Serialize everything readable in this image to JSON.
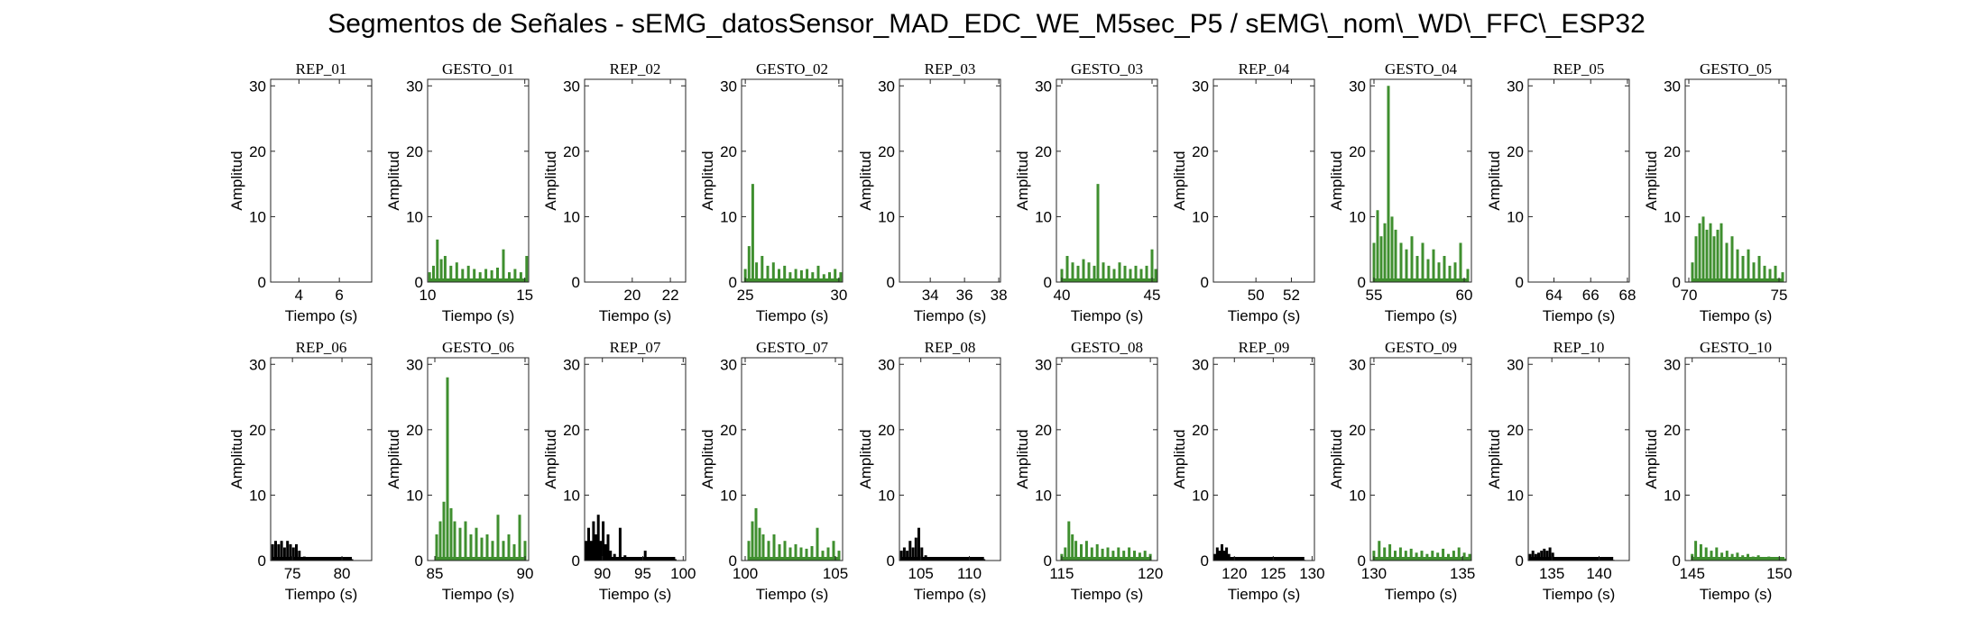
{
  "figure": {
    "title": "Segmentos de Señales - sEMG_datosSensor_MAD_EDC_WE_M5sec_P5 / sEMG\\_nom\\_WD\\_FFC\\_ESP32"
  },
  "colors": {
    "rep": "#000000",
    "gesto": "#3f8f2f",
    "axis": "#262626"
  },
  "chart_data": [
    {
      "type": "area",
      "title": "REP_01",
      "xlabel": "Tiempo (s)",
      "ylabel": "Amplitud",
      "xlim": [
        2.6,
        7.6
      ],
      "ylim": [
        0,
        31
      ],
      "xticks": [
        "4",
        "6"
      ],
      "xtick_values": [
        4,
        6
      ],
      "yticks": [
        "0",
        "10",
        "20",
        "30"
      ],
      "color": "#000000",
      "x": [],
      "y": []
    },
    {
      "type": "area",
      "title": "GESTO_01",
      "xlabel": "Tiempo (s)",
      "ylabel": "Amplitud",
      "xlim": [
        10,
        15.2
      ],
      "ylim": [
        0,
        31
      ],
      "xticks": [
        "10",
        "15"
      ],
      "xtick_values": [
        10,
        15
      ],
      "yticks": [
        "0",
        "10",
        "20",
        "30"
      ],
      "color": "#3f8f2f",
      "x": [
        10.1,
        10.3,
        10.5,
        10.7,
        10.9,
        11.2,
        11.5,
        11.8,
        12.1,
        12.4,
        12.7,
        13.0,
        13.3,
        13.6,
        13.9,
        14.2,
        14.5,
        14.8,
        15.1
      ],
      "y": [
        1.5,
        2.5,
        6.5,
        3.5,
        4,
        2.5,
        3,
        2,
        2.5,
        2,
        1.5,
        2,
        1.8,
        2.2,
        5,
        1.5,
        2,
        1.5,
        4
      ]
    },
    {
      "type": "area",
      "title": "REP_02",
      "xlabel": "Tiempo (s)",
      "ylabel": "Amplitud",
      "xlim": [
        17.5,
        22.8
      ],
      "ylim": [
        0,
        31
      ],
      "xticks": [
        "20",
        "22"
      ],
      "xtick_values": [
        20,
        22
      ],
      "yticks": [
        "0",
        "10",
        "20",
        "30"
      ],
      "color": "#000000",
      "x": [],
      "y": []
    },
    {
      "type": "area",
      "title": "GESTO_02",
      "xlabel": "Tiempo (s)",
      "ylabel": "Amplitud",
      "xlim": [
        24.8,
        30.2
      ],
      "ylim": [
        0,
        31
      ],
      "xticks": [
        "25",
        "30"
      ],
      "xtick_values": [
        25,
        30
      ],
      "yticks": [
        "0",
        "10",
        "20",
        "30"
      ],
      "color": "#3f8f2f",
      "x": [
        25.0,
        25.2,
        25.4,
        25.6,
        25.9,
        26.2,
        26.5,
        26.8,
        27.1,
        27.4,
        27.7,
        28.0,
        28.3,
        28.6,
        28.9,
        29.2,
        29.5,
        29.8,
        30.1
      ],
      "y": [
        2,
        5.5,
        15,
        3,
        4,
        2.5,
        3,
        2,
        2.5,
        1.5,
        2,
        1.8,
        2,
        1.5,
        2.5,
        1.2,
        1.5,
        2,
        1.5
      ]
    },
    {
      "type": "area",
      "title": "REP_03",
      "xlabel": "Tiempo (s)",
      "ylabel": "Amplitud",
      "xlim": [
        32.2,
        38.1
      ],
      "ylim": [
        0,
        31
      ],
      "xticks": [
        "34",
        "36",
        "38"
      ],
      "xtick_values": [
        34,
        36,
        38
      ],
      "yticks": [
        "0",
        "10",
        "20",
        "30"
      ],
      "color": "#000000",
      "x": [],
      "y": []
    },
    {
      "type": "area",
      "title": "GESTO_03",
      "xlabel": "Tiempo (s)",
      "ylabel": "Amplitud",
      "xlim": [
        39.7,
        45.3
      ],
      "ylim": [
        0,
        31
      ],
      "xticks": [
        "40",
        "45"
      ],
      "xtick_values": [
        40,
        45
      ],
      "yticks": [
        "0",
        "10",
        "20",
        "30"
      ],
      "color": "#3f8f2f",
      "x": [
        40.0,
        40.3,
        40.6,
        40.9,
        41.2,
        41.5,
        41.8,
        42.0,
        42.3,
        42.6,
        42.9,
        43.2,
        43.5,
        43.8,
        44.1,
        44.4,
        44.7,
        45.0,
        45.2
      ],
      "y": [
        2,
        4,
        3,
        2.5,
        3.5,
        3,
        2.5,
        15,
        3,
        2.5,
        2,
        3,
        2.5,
        2,
        2.5,
        2,
        2.5,
        5,
        2
      ]
    },
    {
      "type": "area",
      "title": "REP_04",
      "xlabel": "Tiempo (s)",
      "ylabel": "Amplitud",
      "xlim": [
        47.6,
        53.3
      ],
      "ylim": [
        0,
        31
      ],
      "xticks": [
        "50",
        "52"
      ],
      "xtick_values": [
        50,
        52
      ],
      "yticks": [
        "0",
        "10",
        "20",
        "30"
      ],
      "color": "#000000",
      "x": [],
      "y": []
    },
    {
      "type": "area",
      "title": "GESTO_04",
      "xlabel": "Tiempo (s)",
      "ylabel": "Amplitud",
      "xlim": [
        54.8,
        60.4
      ],
      "ylim": [
        0,
        31
      ],
      "xticks": [
        "55",
        "60"
      ],
      "xtick_values": [
        55,
        60
      ],
      "yticks": [
        "0",
        "10",
        "20",
        "30"
      ],
      "color": "#3f8f2f",
      "x": [
        55.0,
        55.2,
        55.4,
        55.6,
        55.8,
        56.0,
        56.2,
        56.5,
        56.8,
        57.1,
        57.4,
        57.7,
        58.0,
        58.3,
        58.6,
        58.9,
        59.2,
        59.5,
        59.8,
        60.2
      ],
      "y": [
        6,
        11,
        7,
        9,
        30,
        10,
        8,
        6,
        5,
        7,
        4,
        6,
        3.5,
        5,
        3,
        4,
        2.5,
        3,
        6,
        2
      ]
    },
    {
      "type": "area",
      "title": "REP_05",
      "xlabel": "Tiempo (s)",
      "ylabel": "Amplitud",
      "xlim": [
        62.6,
        68.1
      ],
      "ylim": [
        0,
        31
      ],
      "xticks": [
        "64",
        "66",
        "68"
      ],
      "xtick_values": [
        64,
        66,
        68
      ],
      "yticks": [
        "0",
        "10",
        "20",
        "30"
      ],
      "color": "#000000",
      "x": [],
      "y": []
    },
    {
      "type": "area",
      "title": "GESTO_05",
      "xlabel": "Tiempo (s)",
      "ylabel": "Amplitud",
      "xlim": [
        69.8,
        75.4
      ],
      "ylim": [
        0,
        31
      ],
      "xticks": [
        "70",
        "75"
      ],
      "xtick_values": [
        70,
        75
      ],
      "yticks": [
        "0",
        "10",
        "20",
        "30"
      ],
      "color": "#3f8f2f",
      "x": [
        70.2,
        70.4,
        70.6,
        70.8,
        71.0,
        71.2,
        71.4,
        71.6,
        71.8,
        72.1,
        72.4,
        72.7,
        73.0,
        73.3,
        73.6,
        73.9,
        74.2,
        74.5,
        74.8,
        75.2
      ],
      "y": [
        3,
        7,
        9,
        10,
        8,
        9,
        7,
        8,
        9,
        6,
        7,
        5,
        4,
        5,
        3,
        4,
        2.5,
        2,
        2.5,
        1.5
      ]
    },
    {
      "type": "area",
      "title": "REP_06",
      "xlabel": "Tiempo (s)",
      "ylabel": "Amplitud",
      "xlim": [
        72.8,
        83
      ],
      "ylim": [
        0,
        31
      ],
      "xticks": [
        "75",
        "80"
      ],
      "xtick_values": [
        75,
        80
      ],
      "yticks": [
        "0",
        "10",
        "20",
        "30"
      ],
      "color": "#000000",
      "x": [
        73.0,
        73.3,
        73.6,
        73.9,
        74.2,
        74.5,
        74.8,
        75.1,
        75.4,
        75.7,
        76.2,
        77.0,
        78.0,
        79.0,
        80.0,
        81.0
      ],
      "y": [
        2.5,
        3,
        2.5,
        3,
        2,
        3,
        2.5,
        2,
        2.5,
        1.5,
        0.6,
        0.4,
        0.3,
        0.3,
        0.2,
        0.2
      ]
    },
    {
      "type": "area",
      "title": "GESTO_06",
      "xlabel": "Tiempo (s)",
      "ylabel": "Amplitud",
      "xlim": [
        84.6,
        90.2
      ],
      "ylim": [
        0,
        31
      ],
      "xticks": [
        "85",
        "90"
      ],
      "xtick_values": [
        85,
        90
      ],
      "yticks": [
        "0",
        "10",
        "20",
        "30"
      ],
      "color": "#3f8f2f",
      "x": [
        85.1,
        85.3,
        85.5,
        85.7,
        85.9,
        86.1,
        86.4,
        86.7,
        87.0,
        87.3,
        87.6,
        87.9,
        88.2,
        88.5,
        88.8,
        89.1,
        89.4,
        89.7,
        90.0
      ],
      "y": [
        4,
        6,
        9,
        28,
        8,
        6,
        5,
        6,
        4,
        5,
        3.5,
        4,
        3,
        7,
        3,
        4,
        2.5,
        7,
        3
      ]
    },
    {
      "type": "area",
      "title": "REP_07",
      "xlabel": "Tiempo (s)",
      "ylabel": "Amplitud",
      "xlim": [
        87.8,
        100.3
      ],
      "ylim": [
        0,
        31
      ],
      "xticks": [
        "90",
        "95",
        "100"
      ],
      "xtick_values": [
        90,
        95,
        100
      ],
      "yticks": [
        "0",
        "10",
        "20",
        "30"
      ],
      "color": "#000000",
      "x": [
        88.0,
        88.3,
        88.6,
        88.9,
        89.2,
        89.5,
        89.8,
        90.1,
        90.4,
        90.7,
        91.0,
        91.5,
        92.2,
        92.8,
        93.5,
        94.5,
        95.3,
        96.0,
        97.0,
        98.0,
        99.0
      ],
      "y": [
        3,
        5,
        3,
        6,
        4,
        7,
        3,
        6,
        2.5,
        4,
        1.5,
        1,
        5,
        0.8,
        0.5,
        0.4,
        1.5,
        0.3,
        0.3,
        0.3,
        0.2
      ]
    },
    {
      "type": "area",
      "title": "GESTO_07",
      "xlabel": "Tiempo (s)",
      "ylabel": "Amplitud",
      "xlim": [
        99.8,
        105.4
      ],
      "ylim": [
        0,
        31
      ],
      "xticks": [
        "100",
        "105"
      ],
      "xtick_values": [
        100,
        105
      ],
      "yticks": [
        "0",
        "10",
        "20",
        "30"
      ],
      "color": "#3f8f2f",
      "x": [
        100.2,
        100.4,
        100.6,
        100.8,
        101.0,
        101.3,
        101.6,
        101.9,
        102.2,
        102.5,
        102.8,
        103.1,
        103.4,
        103.7,
        104.0,
        104.3,
        104.6,
        104.9,
        105.2
      ],
      "y": [
        3,
        6,
        8,
        5,
        4,
        3,
        4,
        2.5,
        3,
        2,
        2.5,
        2,
        1.8,
        2.2,
        5,
        1.5,
        2,
        3,
        1.5
      ]
    },
    {
      "type": "area",
      "title": "REP_08",
      "xlabel": "Tiempo (s)",
      "ylabel": "Amplitud",
      "xlim": [
        102.8,
        113.2
      ],
      "ylim": [
        0,
        31
      ],
      "xticks": [
        "105",
        "110"
      ],
      "xtick_values": [
        105,
        110
      ],
      "yticks": [
        "0",
        "10",
        "20",
        "30"
      ],
      "color": "#000000",
      "x": [
        103.0,
        103.3,
        103.6,
        103.9,
        104.2,
        104.5,
        104.8,
        105.1,
        105.5,
        106.0,
        106.8,
        107.5,
        108.5,
        109.5,
        110.5,
        111.5
      ],
      "y": [
        1.5,
        2,
        1.5,
        3,
        2,
        3.5,
        5,
        2,
        0.8,
        0.4,
        0.3,
        0.3,
        0.4,
        0.3,
        0.5,
        0.2
      ]
    },
    {
      "type": "area",
      "title": "GESTO_08",
      "xlabel": "Tiempo (s)",
      "ylabel": "Amplitud",
      "xlim": [
        114.7,
        120.4
      ],
      "ylim": [
        0,
        31
      ],
      "xticks": [
        "115",
        "120"
      ],
      "xtick_values": [
        115,
        120
      ],
      "yticks": [
        "0",
        "10",
        "20",
        "30"
      ],
      "color": "#3f8f2f",
      "x": [
        115.0,
        115.2,
        115.4,
        115.6,
        115.8,
        116.1,
        116.4,
        116.7,
        117.0,
        117.3,
        117.6,
        117.9,
        118.2,
        118.5,
        118.8,
        119.1,
        119.4,
        119.7,
        120.0
      ],
      "y": [
        1,
        2,
        6,
        4,
        3,
        2.5,
        3,
        2,
        2.5,
        1.8,
        2,
        1.5,
        2,
        1.5,
        2,
        1.5,
        1.2,
        1.5,
        1
      ]
    },
    {
      "type": "area",
      "title": "REP_09",
      "xlabel": "Tiempo (s)",
      "ylabel": "Amplitud",
      "xlim": [
        117.3,
        130.3
      ],
      "ylim": [
        0,
        31
      ],
      "xticks": [
        "120",
        "125",
        "130"
      ],
      "xtick_values": [
        120,
        125,
        130
      ],
      "yticks": [
        "0",
        "10",
        "20",
        "30"
      ],
      "color": "#000000",
      "x": [
        117.5,
        117.8,
        118.1,
        118.4,
        118.7,
        119.0,
        119.3,
        119.7,
        120.5,
        121.5,
        123.0,
        125.0,
        127.0,
        129.0
      ],
      "y": [
        1,
        2,
        1.5,
        2.5,
        1.5,
        2,
        1,
        0.5,
        0.3,
        0.2,
        0.2,
        0.2,
        0.1,
        0.1
      ]
    },
    {
      "type": "area",
      "title": "GESTO_09",
      "xlabel": "Tiempo (s)",
      "ylabel": "Amplitud",
      "xlim": [
        129.8,
        135.5
      ],
      "ylim": [
        0,
        31
      ],
      "xticks": [
        "130",
        "135"
      ],
      "xtick_values": [
        130,
        135
      ],
      "yticks": [
        "0",
        "10",
        "20",
        "30"
      ],
      "color": "#3f8f2f",
      "x": [
        130.0,
        130.3,
        130.6,
        130.9,
        131.2,
        131.5,
        131.8,
        132.1,
        132.4,
        132.7,
        133.0,
        133.3,
        133.6,
        133.9,
        134.2,
        134.5,
        134.8,
        135.1,
        135.4
      ],
      "y": [
        1.5,
        3,
        2,
        2.5,
        1.5,
        2,
        1.5,
        1.8,
        1.2,
        1.5,
        1,
        1.5,
        1.2,
        1.8,
        1,
        1.5,
        2,
        1.2,
        1
      ]
    },
    {
      "type": "area",
      "title": "REP_10",
      "xlabel": "Tiempo (s)",
      "ylabel": "Amplitud",
      "xlim": [
        132.5,
        143.2
      ],
      "ylim": [
        0,
        31
      ],
      "xticks": [
        "135",
        "140"
      ],
      "xtick_values": [
        135,
        140
      ],
      "yticks": [
        "0",
        "10",
        "20",
        "30"
      ],
      "color": "#000000",
      "x": [
        132.7,
        133.0,
        133.3,
        133.6,
        133.9,
        134.2,
        134.5,
        134.8,
        135.1,
        135.5,
        136.0,
        137.0,
        138.5,
        140.0,
        141.5
      ],
      "y": [
        1,
        1.5,
        1,
        1.2,
        1.5,
        1.8,
        1.5,
        2,
        1.2,
        0.5,
        0.3,
        0.2,
        0.2,
        0.1,
        0.1
      ]
    },
    {
      "type": "area",
      "title": "GESTO_10",
      "xlabel": "Tiempo (s)",
      "ylabel": "Amplitud",
      "xlim": [
        144.6,
        150.4
      ],
      "ylim": [
        0,
        31
      ],
      "xticks": [
        "145",
        "150"
      ],
      "xtick_values": [
        145,
        150
      ],
      "yticks": [
        "0",
        "10",
        "20",
        "30"
      ],
      "color": "#3f8f2f",
      "x": [
        145.0,
        145.2,
        145.5,
        145.8,
        146.1,
        146.4,
        146.7,
        147.0,
        147.3,
        147.6,
        147.9,
        148.2,
        148.5,
        148.8,
        149.1,
        149.4,
        149.7,
        150.0,
        150.3
      ],
      "y": [
        1,
        3,
        2.5,
        2,
        1.5,
        2,
        1.2,
        1.5,
        1,
        1.2,
        0.8,
        1,
        0.6,
        0.8,
        0.5,
        0.6,
        0.4,
        0.5,
        0.3
      ]
    }
  ]
}
